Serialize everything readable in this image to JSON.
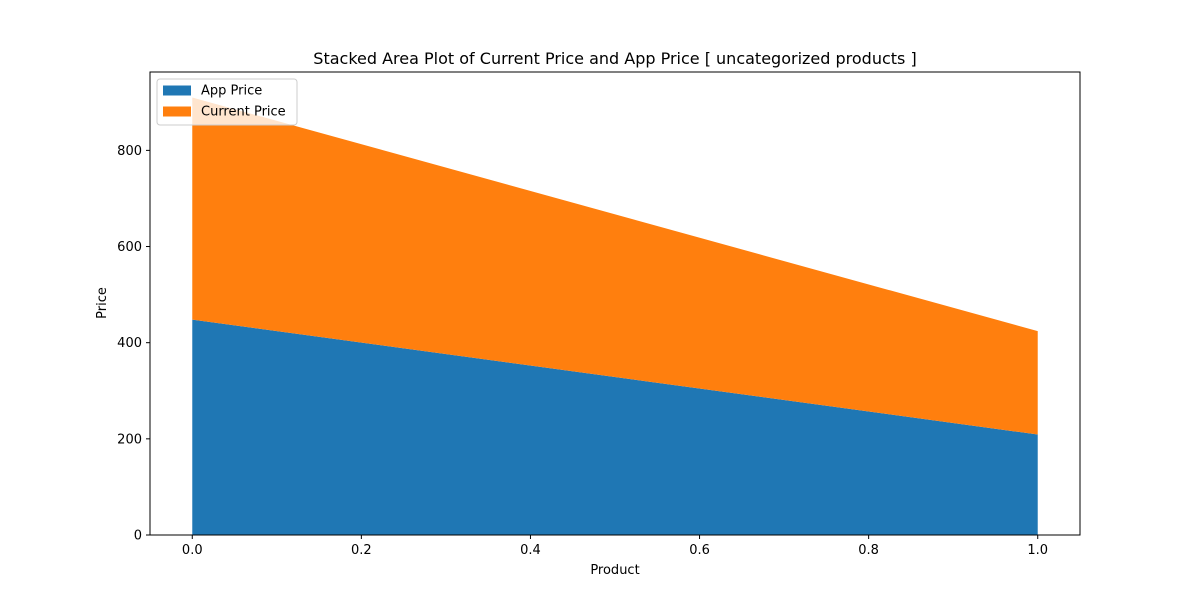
{
  "chart_data": {
    "type": "area",
    "stacked": true,
    "title": "Stacked Area Plot of Current Price and App Price [ uncategorized products ]",
    "xlabel": "Product",
    "ylabel": "Price",
    "x": [
      0.0,
      1.0
    ],
    "xlim": [
      -0.05,
      1.05
    ],
    "ylim": [
      0,
      963
    ],
    "xticks": [
      0.0,
      0.2,
      0.4,
      0.6,
      0.8,
      1.0
    ],
    "xtick_labels": [
      "0.0",
      "0.2",
      "0.4",
      "0.6",
      "0.8",
      "1.0"
    ],
    "yticks": [
      0,
      200,
      400,
      600,
      800
    ],
    "ytick_labels": [
      "0",
      "200",
      "400",
      "600",
      "800"
    ],
    "grid": false,
    "legend_position": "upper-left",
    "series": [
      {
        "name": "App Price",
        "values": [
          448,
          209
        ],
        "color": "#1f77b4"
      },
      {
        "name": "Current Price",
        "values": [
          462,
          215
        ],
        "color": "#ff7f0e"
      }
    ]
  }
}
